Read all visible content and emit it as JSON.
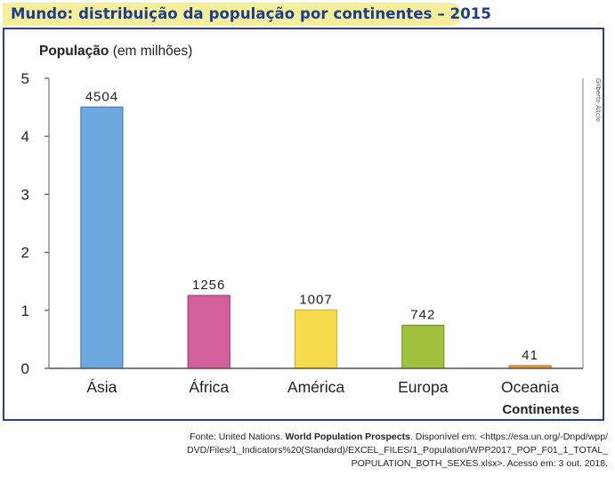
{
  "title": "Mundo: distribuição da população por continentes – 2015",
  "credit": "Gilberto Alicio",
  "source": {
    "prefix": "Fonte: United Nations. ",
    "work": "World Population Prospects",
    "rest": ". Disponível em: <https://esa.un.org/-Dnpd/wpp/ DVD/Files/1_Indicators%20(Standard)/EXCEL_FILES/1_Population/WPP2017_POP_F01_1_TOTAL_ POPULATION_BOTH_SEXES.xlsx>. Acesso em: 3 out. 2018."
  },
  "chart_data": {
    "type": "bar",
    "ylabel_bold": "População",
    "ylabel_rest": " (em milhões)",
    "xlabel": "Continentes",
    "ylim": [
      0,
      5
    ],
    "yticks": [
      "0",
      "1",
      "2",
      "3",
      "4",
      "5"
    ],
    "categories": [
      "Ásia",
      "África",
      "América",
      "Europa",
      "Oceania"
    ],
    "values": [
      4504,
      1256,
      1007,
      742,
      41
    ],
    "value_labels": [
      "4504",
      "1256",
      "1007",
      "742",
      "41"
    ],
    "bar_colors": [
      "#6ca8de",
      "#d1609c",
      "#f6dc4c",
      "#9fc13c",
      "#ee9a38"
    ],
    "bar_edge_colors": [
      "#3f7fbd",
      "#a93a77",
      "#d6b82c",
      "#799a25",
      "#c9741a"
    ],
    "grid": false
  }
}
